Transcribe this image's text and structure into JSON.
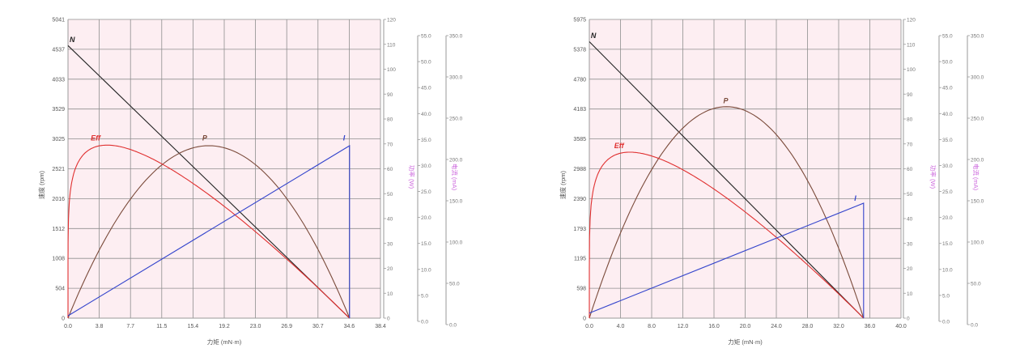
{
  "colors": {
    "plot_bg": "#fdeef2",
    "grid": "#8e8e8e",
    "axis": "#9a9a9a",
    "speed": "#222222",
    "power": "#7a4a3a",
    "efficiency": "#e03030",
    "current": "#3344cc",
    "secondary_axis_label": "#cc66dd"
  },
  "chart_data": [
    {
      "type": "line",
      "xlabel": "力矩 (mN·m)",
      "ylabel_left": "速度 (rpm)",
      "ylabel_right1": "功率 (W)",
      "ylabel_right2": "电流 (mA)",
      "xlim": [
        0,
        38.4
      ],
      "x_ticks": [
        "0.0",
        "3.8",
        "7.7",
        "11.5",
        "15.4",
        "19.2",
        "23.0",
        "26.9",
        "30.7",
        "34.6",
        "38.4"
      ],
      "ylim_left": [
        0,
        5041
      ],
      "y_left_ticks": [
        "0",
        "504",
        "1008",
        "1512",
        "2016",
        "2521",
        "3025",
        "3529",
        "4033",
        "4537",
        "5041"
      ],
      "ylim_right1": [
        0,
        120
      ],
      "y_right1_ticks": [
        "0",
        "10",
        "20",
        "30",
        "40",
        "50",
        "60",
        "70",
        "80",
        "90",
        "100",
        "110",
        "120"
      ],
      "ylim_right2": [
        0,
        55
      ],
      "y_right2_ticks": [
        "0.0",
        "5.0",
        "10.0",
        "15.0",
        "20.0",
        "25.0",
        "30.0",
        "35.0",
        "40.0",
        "45.0",
        "50.0",
        "55.0"
      ],
      "ylim_right3": [
        0,
        385
      ],
      "y_right3_ticks": [
        "0.0",
        "50.0",
        "100.0",
        "150.0",
        "200.0",
        "250.0",
        "300.0",
        "350.0"
      ],
      "stall_torque": 34.6,
      "series": [
        {
          "name": "N",
          "kind": "speed",
          "x": [
            0,
            34.6
          ],
          "y": [
            4600,
            0
          ]
        },
        {
          "name": "P",
          "kind": "power",
          "peak_x": 17.3,
          "peak_y": 2910
        },
        {
          "name": "Eff",
          "kind": "efficiency",
          "peak_x": 4.8,
          "peak_y": 2920
        },
        {
          "name": "I",
          "kind": "current",
          "x": [
            0,
            34.6,
            34.6
          ],
          "y": [
            40,
            2910,
            0
          ]
        }
      ],
      "labels": [
        {
          "text": "N",
          "x": 0.2,
          "y": 4660
        },
        {
          "text": "Eff",
          "x": 2.8,
          "y": 3000
        },
        {
          "text": "P",
          "x": 16.5,
          "y": 3000
        },
        {
          "text": "I",
          "x": 33.8,
          "y": 3000
        }
      ]
    },
    {
      "type": "line",
      "xlabel": "力矩 (mN·m)",
      "ylabel_left": "速度 (rpm)",
      "ylabel_right1": "功率 (W)",
      "ylabel_right2": "电流 (mA)",
      "xlim": [
        0,
        40.0
      ],
      "x_ticks": [
        "0.0",
        "4.0",
        "8.0",
        "12.0",
        "16.0",
        "20.0",
        "24.0",
        "28.0",
        "32.0",
        "36.0",
        "40.0"
      ],
      "ylim_left": [
        0,
        5975
      ],
      "y_left_ticks": [
        "0",
        "598",
        "1195",
        "1793",
        "2390",
        "2988",
        "3585",
        "4183",
        "4780",
        "5378",
        "5975"
      ],
      "ylim_right1": [
        0,
        120
      ],
      "y_right1_ticks": [
        "0",
        "10",
        "20",
        "30",
        "40",
        "50",
        "60",
        "70",
        "80",
        "90",
        "100",
        "110",
        "120"
      ],
      "ylim_right2": [
        0,
        55
      ],
      "y_right2_ticks": [
        "0.0",
        "5.0",
        "10.0",
        "15.0",
        "20.0",
        "25.0",
        "30.0",
        "35.0",
        "40.0",
        "45.0",
        "50.0",
        "55.0"
      ],
      "ylim_right3": [
        0,
        385
      ],
      "y_right3_ticks": [
        "0.0",
        "50.0",
        "100.0",
        "150.0",
        "200.0",
        "250.0",
        "300.0",
        "350.0"
      ],
      "stall_torque": 35.2,
      "series": [
        {
          "name": "N",
          "kind": "speed",
          "x": [
            0,
            35.2
          ],
          "y": [
            5530,
            0
          ]
        },
        {
          "name": "P",
          "kind": "power",
          "peak_x": 17.6,
          "peak_y": 4230
        },
        {
          "name": "Eff",
          "kind": "efficiency",
          "peak_x": 5.2,
          "peak_y": 3320
        },
        {
          "name": "I",
          "kind": "current",
          "x": [
            0,
            35.2,
            35.2
          ],
          "y": [
            100,
            2300,
            0
          ]
        }
      ],
      "labels": [
        {
          "text": "N",
          "x": 0.2,
          "y": 5600
        },
        {
          "text": "Eff",
          "x": 3.2,
          "y": 3400
        },
        {
          "text": "P",
          "x": 17.2,
          "y": 4300
        },
        {
          "text": "I",
          "x": 34.0,
          "y": 2350
        }
      ]
    }
  ]
}
